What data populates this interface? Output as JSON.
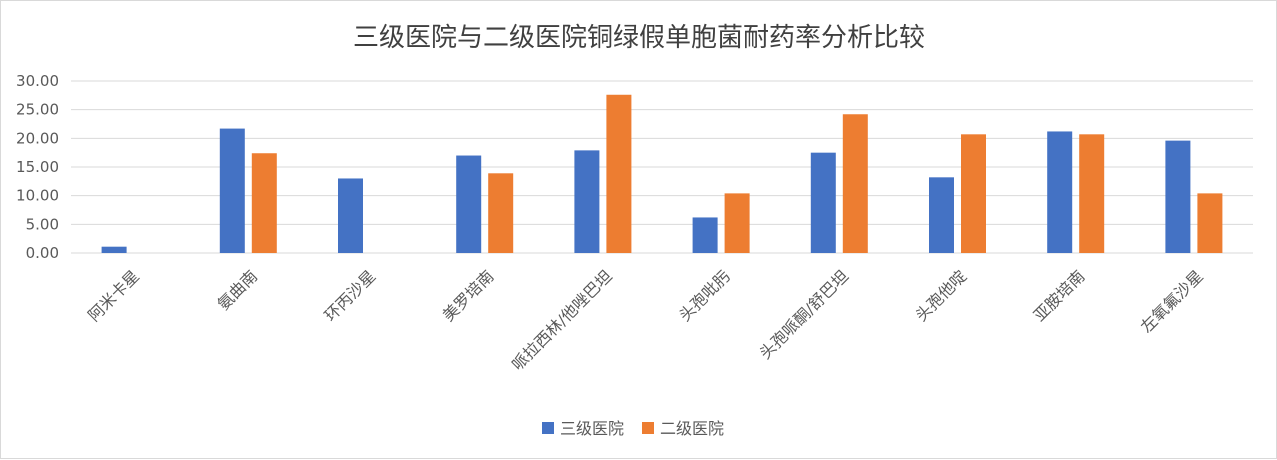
{
  "chart_data": {
    "type": "bar",
    "title": "三级医院与二级医院铜绿假单胞菌耐药率分析比较",
    "xlabel": "",
    "ylabel": "",
    "ylim": [
      0,
      30
    ],
    "yticks": [
      "0.00",
      "5.00",
      "10.00",
      "15.00",
      "20.00",
      "25.00",
      "30.00"
    ],
    "categories": [
      "阿米卡星",
      "氨曲南",
      "环丙沙星",
      "美罗培南",
      "哌拉西林/他唑巴坦",
      "头孢吡肟",
      "头孢哌酮/舒巴坦",
      "头孢他啶",
      "亚胺培南",
      "左氧氟沙星"
    ],
    "series": [
      {
        "name": "三级医院",
        "color": "#4472C4",
        "values": [
          1.1,
          21.7,
          13.0,
          17.0,
          17.9,
          6.2,
          17.5,
          13.2,
          21.2,
          19.6
        ]
      },
      {
        "name": "二级医院",
        "color": "#ED7D31",
        "values": [
          0,
          17.4,
          0,
          13.9,
          27.6,
          10.4,
          24.2,
          20.7,
          20.7,
          10.4
        ]
      }
    ],
    "grid": true,
    "legend_position": "bottom"
  }
}
